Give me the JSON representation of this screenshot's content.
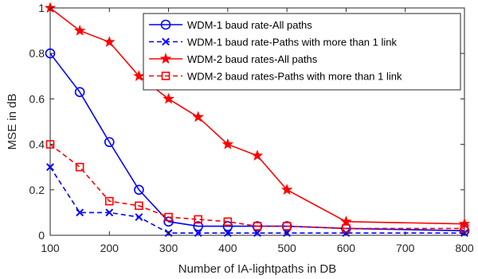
{
  "chart_data": {
    "type": "line",
    "title": "",
    "xlabel": "Number of IA-lightpaths in DB",
    "ylabel": "MSE in dB",
    "xlim": [
      100,
      800
    ],
    "ylim": [
      0,
      1
    ],
    "xticks": [
      100,
      200,
      300,
      400,
      500,
      600,
      700,
      800
    ],
    "yticks": [
      0,
      0.2,
      0.4,
      0.6,
      0.8,
      1
    ],
    "xtick_labels": [
      "100",
      "200",
      "300",
      "400",
      "500",
      "600",
      "700",
      "800"
    ],
    "ytick_labels": [
      "0",
      "0.2",
      "0.4",
      "0.6",
      "0.8",
      "1"
    ],
    "grid": false,
    "legend_position": "top-right",
    "series": [
      {
        "name": "WDM-1 baud rate-All paths",
        "color": "#0000ff",
        "line": "solid",
        "marker": "circle",
        "x": [
          100,
          150,
          200,
          250,
          300,
          350,
          400,
          450,
          500,
          600,
          800
        ],
        "y": [
          0.8,
          0.63,
          0.41,
          0.2,
          0.06,
          0.04,
          0.04,
          0.04,
          0.04,
          0.03,
          0.02
        ]
      },
      {
        "name": "WDM-1 baud rate-Paths with more than 1 link",
        "color": "#0000ff",
        "line": "dashed",
        "marker": "x",
        "x": [
          100,
          150,
          200,
          250,
          300,
          350,
          400,
          450,
          500,
          600,
          800
        ],
        "y": [
          0.3,
          0.1,
          0.1,
          0.08,
          0.01,
          0.01,
          0.01,
          0.01,
          0.01,
          0.01,
          0.01
        ]
      },
      {
        "name": "WDM-2 baud rates-All paths",
        "color": "#ff0000",
        "line": "solid",
        "marker": "star",
        "x": [
          100,
          150,
          200,
          250,
          300,
          350,
          400,
          450,
          500,
          600,
          800
        ],
        "y": [
          1.0,
          0.9,
          0.85,
          0.7,
          0.6,
          0.52,
          0.4,
          0.35,
          0.2,
          0.06,
          0.05
        ]
      },
      {
        "name": "WDM-2 baud rates-Paths with more than 1 link",
        "color": "#ff0000",
        "line": "dashed",
        "marker": "square",
        "x": [
          100,
          150,
          200,
          250,
          300,
          350,
          400,
          450,
          500,
          600,
          800
        ],
        "y": [
          0.4,
          0.3,
          0.15,
          0.13,
          0.08,
          0.07,
          0.06,
          0.04,
          0.04,
          0.03,
          0.03
        ]
      }
    ]
  }
}
